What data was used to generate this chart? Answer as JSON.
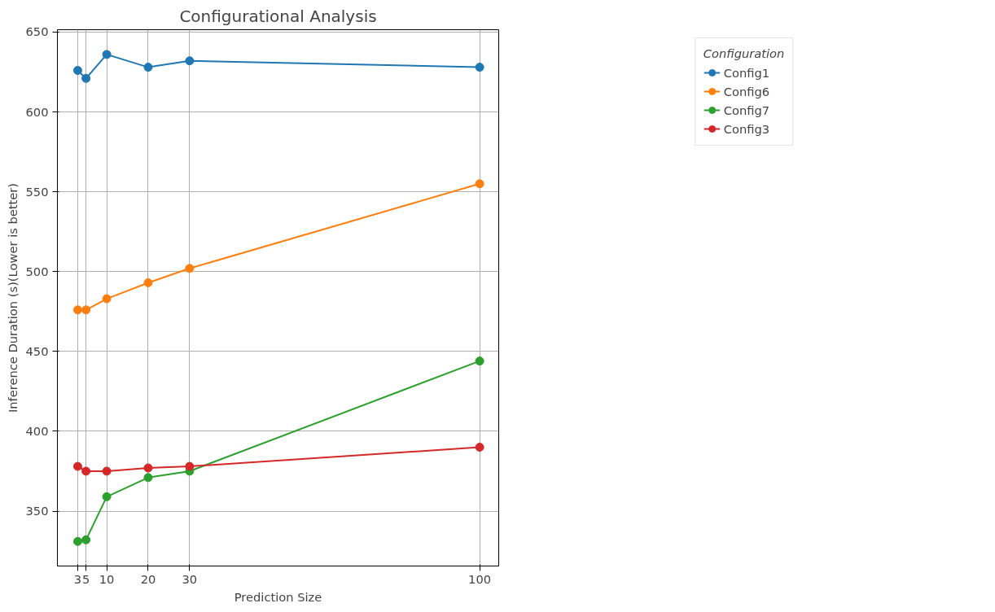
{
  "chart_data": {
    "type": "line",
    "title": "Configurational Analysis",
    "xlabel": "Prediction Size",
    "ylabel": "Inference Duration (s)(Lower is better)",
    "legend_title": "Configuration",
    "x": [
      3,
      5,
      10,
      20,
      30,
      100
    ],
    "series": [
      {
        "name": "Config1",
        "color": "#1f77b4",
        "values": [
          626,
          621,
          636,
          628,
          632,
          628
        ]
      },
      {
        "name": "Config6",
        "color": "#ff7f0e",
        "values": [
          476,
          476,
          483,
          493,
          502,
          555
        ]
      },
      {
        "name": "Config7",
        "color": "#2ca02c",
        "values": [
          331,
          332,
          359,
          371,
          375,
          444
        ]
      },
      {
        "name": "Config3",
        "color": "#d62728",
        "values": [
          378,
          375,
          375,
          377,
          378,
          390
        ]
      }
    ],
    "xlim": [
      -1.9,
      104.6
    ],
    "ylim": [
      315.6,
      651.5
    ],
    "xticks": [
      3,
      5,
      10,
      20,
      30,
      100
    ],
    "yticks": [
      350,
      400,
      450,
      500,
      550,
      600,
      650
    ],
    "grid": true,
    "legend": "top right",
    "marker": "circle",
    "line_style": "solid"
  }
}
